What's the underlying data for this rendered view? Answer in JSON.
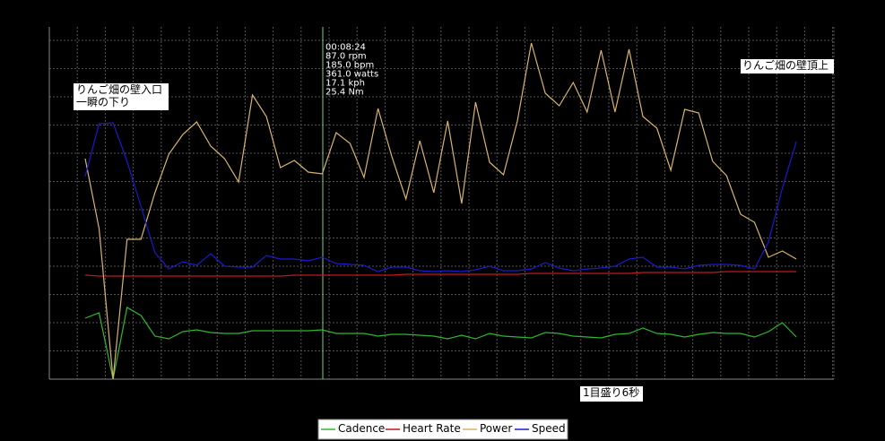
{
  "chart_data": {
    "type": "line",
    "ylim": [
      0,
      393
    ],
    "grid": true,
    "cursor": {
      "lines": [
        "00:08:24",
        "87.0 rpm",
        "185.0 bpm",
        "361.0 watts",
        "17.1 kph",
        "25.4 Nm"
      ]
    },
    "annotations": [
      [
        "りんご畑の壁入口",
        "一瞬の下り"
      ],
      [
        "りんご畑の壁頂上"
      ],
      [
        "1目盛り6秒"
      ]
    ],
    "series": [
      {
        "name": "Cadence",
        "color": "#2eb82e",
        "values": [
          68,
          74,
          0,
          80,
          71,
          48,
          45,
          53,
          55,
          52,
          51,
          51,
          54,
          54,
          54,
          54,
          54,
          55,
          51,
          51,
          51,
          48,
          50,
          50,
          49,
          48,
          45,
          49,
          45,
          51,
          48,
          47,
          46,
          52,
          51,
          48,
          47,
          46,
          50,
          51,
          57,
          51,
          50,
          47,
          50,
          52,
          51,
          51,
          47,
          53,
          63,
          47
        ]
      },
      {
        "name": "Heart Rate",
        "color": "#c0181c",
        "values": [
          116,
          115,
          115,
          115,
          115,
          115,
          115,
          115,
          115,
          115,
          115,
          115,
          115,
          115,
          115,
          116,
          116,
          116,
          116,
          116,
          116,
          116,
          116,
          117,
          117,
          117,
          117,
          117,
          117,
          117,
          117,
          117,
          118,
          118,
          118,
          118,
          118,
          118,
          118,
          118,
          119,
          119,
          119,
          119,
          119,
          119,
          120,
          120,
          120,
          120,
          120,
          120
        ]
      },
      {
        "name": "Power",
        "color": "#d9b36a",
        "values": [
          246,
          168,
          0,
          156,
          156,
          208,
          251,
          273,
          287,
          260,
          246,
          220,
          317,
          293,
          236,
          244,
          231,
          229,
          275,
          263,
          225,
          302,
          248,
          201,
          266,
          208,
          288,
          196,
          309,
          242,
          228,
          288,
          375,
          319,
          305,
          331,
          298,
          367,
          298,
          368,
          293,
          280,
          233,
          301,
          297,
          243,
          227,
          184,
          175,
          136,
          143,
          134
        ]
      },
      {
        "name": "Speed",
        "color": "#1a1ad0",
        "values": [
          226,
          285,
          286,
          243,
          193,
          141,
          123,
          131,
          127,
          140,
          126,
          125,
          125,
          138,
          134,
          134,
          132,
          136,
          129,
          128,
          127,
          120,
          125,
          125,
          121,
          120,
          121,
          120,
          122,
          126,
          121,
          121,
          123,
          130,
          124,
          121,
          123,
          124,
          126,
          134,
          136,
          125,
          125,
          123,
          127,
          128,
          128,
          127,
          123,
          153,
          213,
          265
        ]
      }
    ]
  }
}
